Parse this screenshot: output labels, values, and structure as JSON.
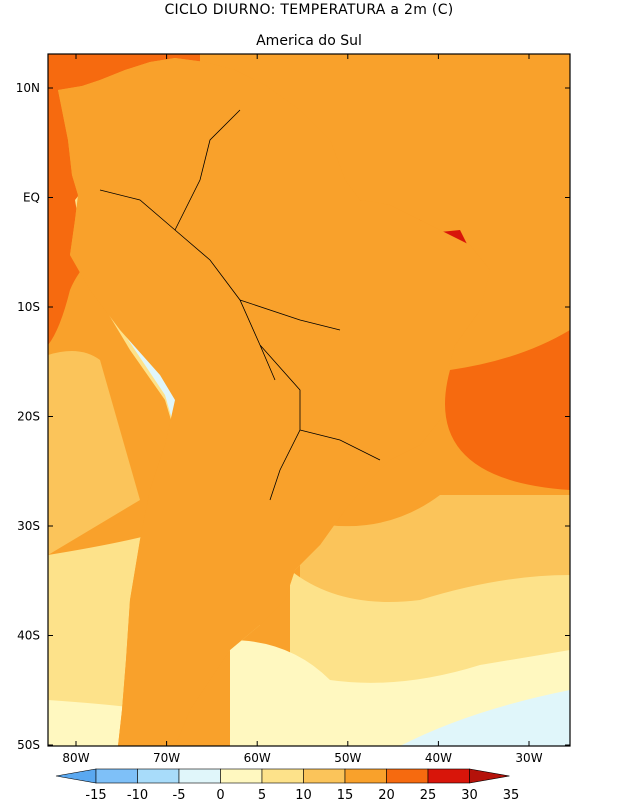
{
  "header": {
    "title": "CICLO DIURNO: TEMPERATURA a 2m (C)",
    "subtitle": "America do Sul"
  },
  "map": {
    "lat_labels": [
      "10N",
      "EQ",
      "10S",
      "20S",
      "30S",
      "40S",
      "50S"
    ],
    "lon_labels": [
      "80W",
      "70W",
      "60W",
      "50W",
      "40W",
      "30W"
    ],
    "extent": {
      "lon_min": -84,
      "lon_max": -26,
      "lat_min": -50,
      "lat_max": 13
    }
  },
  "legend": {
    "ticks": [
      "-15",
      "-10",
      "-5",
      "0",
      "5",
      "10",
      "15",
      "20",
      "25",
      "30",
      "35"
    ],
    "colors": [
      "#5aa8f0",
      "#7ec0f8",
      "#a8dcfa",
      "#e0f6fa",
      "#fff8c0",
      "#fde28a",
      "#fbc45a",
      "#f9a12b",
      "#f66a0f",
      "#d8150a",
      "#b4120a"
    ]
  },
  "colors": {
    "ocean_warm": "#f66a0f",
    "ocean_25": "#f9a12b",
    "ocean_20": "#fbc45a",
    "ocean_15": "#fde28a",
    "ocean_10": "#fff8c0",
    "ocean_5": "#e0f6fa",
    "hot": "#d8150a",
    "warm": "#f66a0f",
    "cold": "#a8dcfa",
    "coastline": "#000000"
  }
}
